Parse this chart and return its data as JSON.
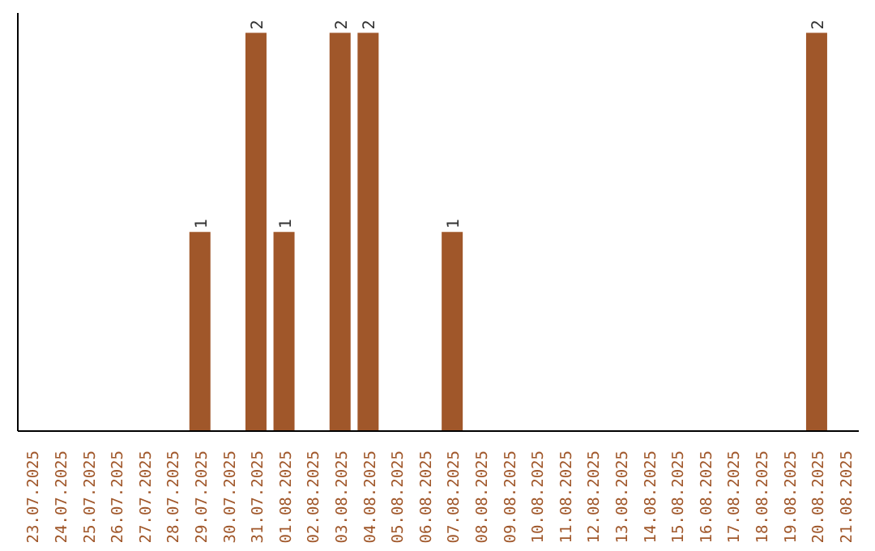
{
  "chart_data": {
    "type": "bar",
    "categories": [
      "23.07.2025",
      "24.07.2025",
      "25.07.2025",
      "26.07.2025",
      "27.07.2025",
      "28.07.2025",
      "29.07.2025",
      "30.07.2025",
      "31.07.2025",
      "01.08.2025",
      "02.08.2025",
      "03.08.2025",
      "04.08.2025",
      "05.08.2025",
      "06.08.2025",
      "07.08.2025",
      "08.08.2025",
      "09.08.2025",
      "10.08.2025",
      "11.08.2025",
      "12.08.2025",
      "13.08.2025",
      "14.08.2025",
      "15.08.2025",
      "16.08.2025",
      "17.08.2025",
      "18.08.2025",
      "19.08.2025",
      "20.08.2025",
      "21.08.2025"
    ],
    "values": [
      0,
      0,
      0,
      0,
      0,
      0,
      1,
      0,
      2,
      1,
      0,
      2,
      2,
      0,
      0,
      1,
      0,
      0,
      0,
      0,
      0,
      0,
      0,
      0,
      0,
      0,
      0,
      0,
      2,
      0
    ],
    "value_labels": [
      null,
      null,
      null,
      null,
      null,
      null,
      "1",
      null,
      "2",
      "1",
      null,
      "2",
      "2",
      null,
      null,
      "1",
      null,
      null,
      null,
      null,
      null,
      null,
      null,
      null,
      null,
      null,
      null,
      null,
      "2",
      null
    ],
    "color": "#a0572a",
    "ylim": [
      0,
      2.1
    ],
    "tick_labels": "x",
    "grid": false
  }
}
